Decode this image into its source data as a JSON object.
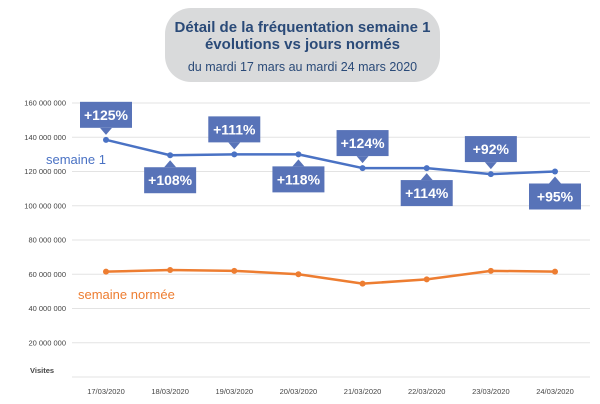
{
  "title": {
    "line1": "Détail de la fréquentation semaine 1",
    "line2": "évolutions vs jours normés",
    "subtitle": "du mardi 17 mars au mardi 24 mars 2020"
  },
  "colors": {
    "semaine1": "#4a72c4",
    "normee": "#ed7d31",
    "callout": "#5873b8",
    "title_bg": "#d9dadb",
    "title_text": "#2a4a78"
  },
  "chart_data": {
    "type": "line",
    "title": "Détail de la fréquentation semaine 1 évolutions vs jours normés",
    "subtitle": "du mardi 17 mars au mardi 24 mars 2020",
    "ylabel": "Visites",
    "xlabel": "",
    "ylim": [
      0,
      160000000
    ],
    "yticks": [
      0,
      20000000,
      40000000,
      60000000,
      80000000,
      100000000,
      120000000,
      140000000,
      160000000
    ],
    "ytick_labels": [
      "",
      "20 000 000",
      "40 000 000",
      "60 000 000",
      "80 000 000",
      "100 000 000",
      "120 000 000",
      "140 000 000",
      "160 000 000"
    ],
    "grid": true,
    "categories": [
      "17/03/2020",
      "18/03/2020",
      "19/03/2020",
      "20/03/2020",
      "21/03/2020",
      "22/03/2020",
      "23/03/2020",
      "24/03/2020"
    ],
    "series": [
      {
        "name": "semaine 1",
        "values": [
          138500000,
          129500000,
          130000000,
          130000000,
          122000000,
          122000000,
          118500000,
          120000000
        ],
        "data_labels": [
          "+125%",
          "+108%",
          "+111%",
          "+118%",
          "+124%",
          "+114%",
          "+92%",
          "+95%"
        ],
        "label_positions": [
          "above",
          "below",
          "above",
          "below",
          "above",
          "below",
          "above",
          "below"
        ]
      },
      {
        "name": "semaine normée",
        "values": [
          61500000,
          62500000,
          62000000,
          60000000,
          54500000,
          57000000,
          62000000,
          61500000
        ]
      }
    ]
  }
}
